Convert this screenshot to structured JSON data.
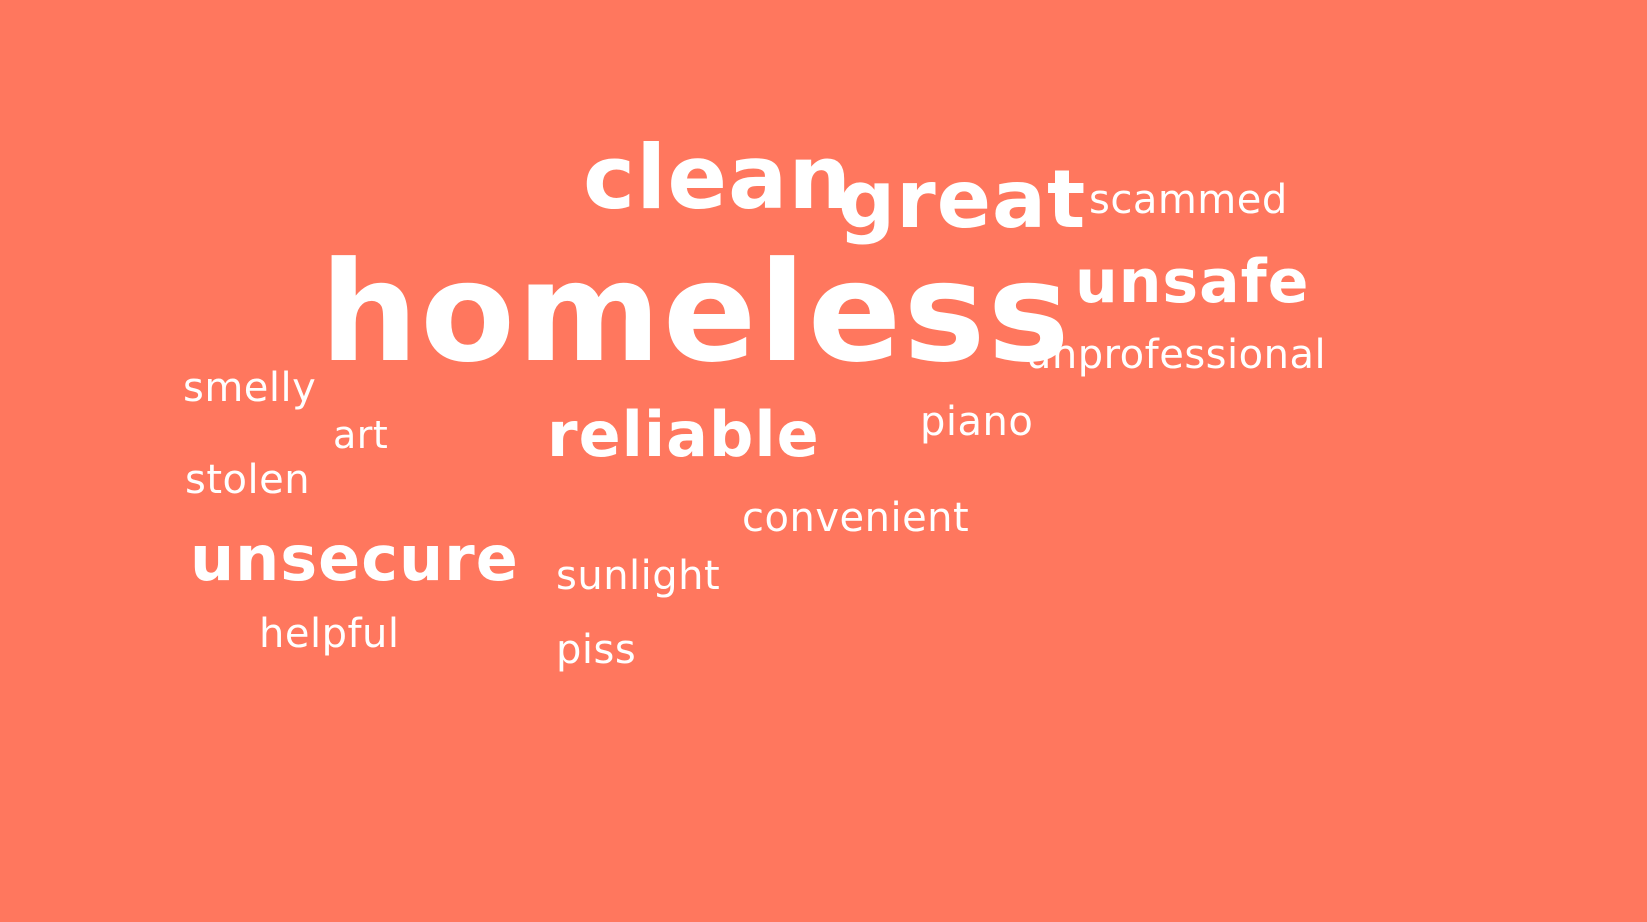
{
  "background_color": "#FF775E",
  "text_color": "#FFFFFF",
  "words": {
    "clean": "clean",
    "great": "great",
    "scammed": "scammed",
    "homeless": "homeless",
    "unsafe": "unsafe",
    "unprofessional": "unprofessional",
    "smelly": "smelly",
    "art": "art",
    "reliable": "reliable",
    "piano": "piano",
    "stolen": "stolen",
    "convenient": "convenient",
    "unsecure": "unsecure",
    "sunlight": "sunlight",
    "helpful": "helpful",
    "piss": "piss"
  }
}
